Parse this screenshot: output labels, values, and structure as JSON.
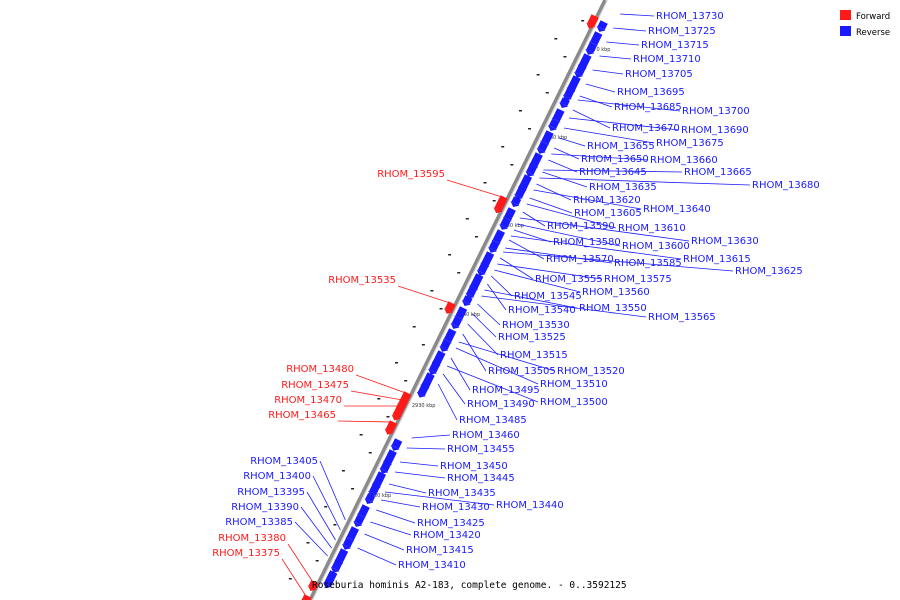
{
  "caption": "Roseburia hominis A2-183, complete genome. - 0..3592125",
  "legend": [
    {
      "label": "Forward",
      "color": "#ff1a1a"
    },
    {
      "label": "Reverse",
      "color": "#1a1aff"
    }
  ],
  "colors": {
    "forward": "#ff1a1a",
    "reverse": "#1a1aff",
    "axis": "#888888"
  },
  "kbp_ticks": [
    "2970 kbp",
    "2960 kbp",
    "2950 kbp",
    "2940 kbp",
    "2930 kbp",
    "2920 kbp"
  ],
  "forward_genes": [
    "RHOM_13595",
    "RHOM_13535",
    "RHOM_13480",
    "RHOM_13475",
    "RHOM_13470",
    "RHOM_13465",
    "RHOM_13380",
    "RHOM_13375"
  ],
  "reverse_genes_left": [
    "RHOM_13405",
    "RHOM_13400",
    "RHOM_13395",
    "RHOM_13390",
    "RHOM_13385"
  ],
  "reverse_genes_right": [
    "RHOM_13730",
    "RHOM_13725",
    "RHOM_13715",
    "RHOM_13710",
    "RHOM_13705",
    "RHOM_13695",
    "RHOM_13685",
    "RHOM_13700",
    "RHOM_13670",
    "RHOM_13690",
    "RHOM_13675",
    "RHOM_13655",
    "RHOM_13650",
    "RHOM_13660",
    "RHOM_13645",
    "RHOM_13665",
    "RHOM_13635",
    "RHOM_13680",
    "RHOM_13620",
    "RHOM_13640",
    "RHOM_13605",
    "RHOM_13610",
    "RHOM_13590",
    "RHOM_13630",
    "RHOM_13600",
    "RHOM_13580",
    "RHOM_13615",
    "RHOM_13570",
    "RHOM_13585",
    "RHOM_13625",
    "RHOM_13555",
    "RHOM_13575",
    "RHOM_13560",
    "RHOM_13545",
    "RHOM_13540",
    "RHOM_13550",
    "RHOM_13565",
    "RHOM_13530",
    "RHOM_13525",
    "RHOM_13515",
    "RHOM_13505",
    "RHOM_13520",
    "RHOM_13510",
    "RHOM_13495",
    "RHOM_13500",
    "RHOM_13490",
    "RHOM_13485",
    "RHOM_13460",
    "RHOM_13455",
    "RHOM_13450",
    "RHOM_13445",
    "RHOM_13435",
    "RHOM_13440",
    "RHOM_13430",
    "RHOM_13425",
    "RHOM_13420",
    "RHOM_13415",
    "RHOM_13410"
  ]
}
